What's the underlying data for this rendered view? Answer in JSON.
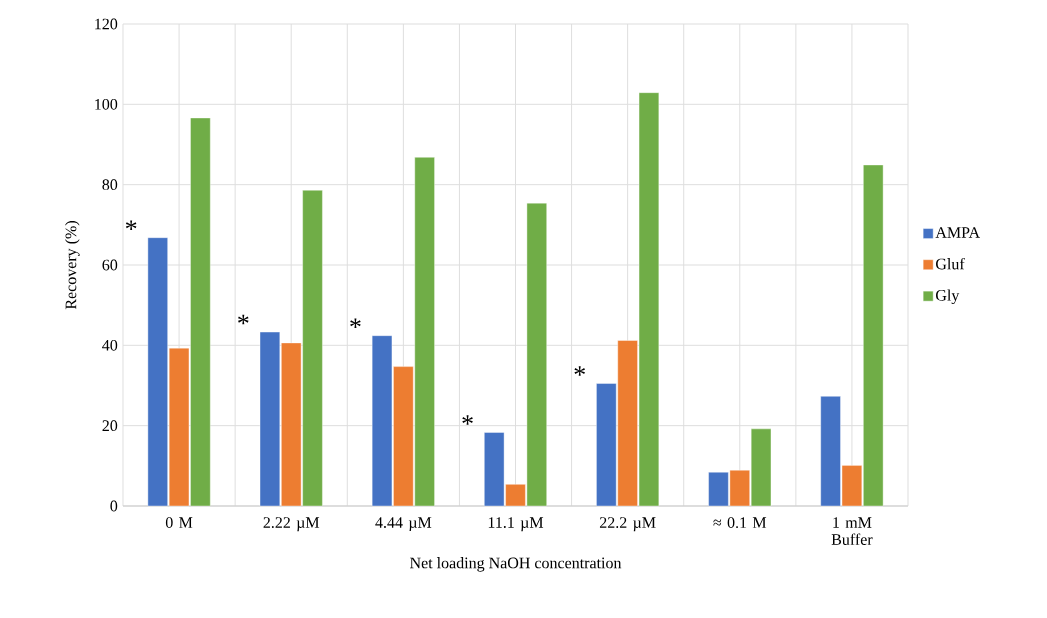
{
  "chart_data": {
    "type": "bar",
    "xlabel": "Net loading NaOH concentration",
    "ylabel": "Recovery (%)",
    "categories": [
      "0 M",
      "2.22 µM",
      "4.44 µM",
      "11.1 µM",
      "22.2 µM",
      "≈ 0.1 M",
      "1 mM Buffer"
    ],
    "series": [
      {
        "name": "AMPA",
        "color": "#4472c4",
        "values": [
          66.8,
          43.3,
          42.4,
          18.3,
          30.5,
          8.4,
          27.3
        ]
      },
      {
        "name": "Gluf",
        "color": "#ed7d31",
        "values": [
          39.3,
          40.6,
          34.7,
          5.4,
          41.2,
          8.9,
          10.1
        ]
      },
      {
        "name": "Gly",
        "color": "#70ad47",
        "values": [
          96.6,
          78.6,
          86.8,
          75.4,
          102.9,
          19.2,
          84.9
        ]
      }
    ],
    "ylim": [
      0,
      120
    ],
    "yticks": [
      0,
      20,
      40,
      60,
      80,
      100,
      120
    ],
    "grid": true,
    "legend": "right",
    "annotations": [
      "*",
      "*",
      "*",
      "*",
      "*"
    ]
  }
}
